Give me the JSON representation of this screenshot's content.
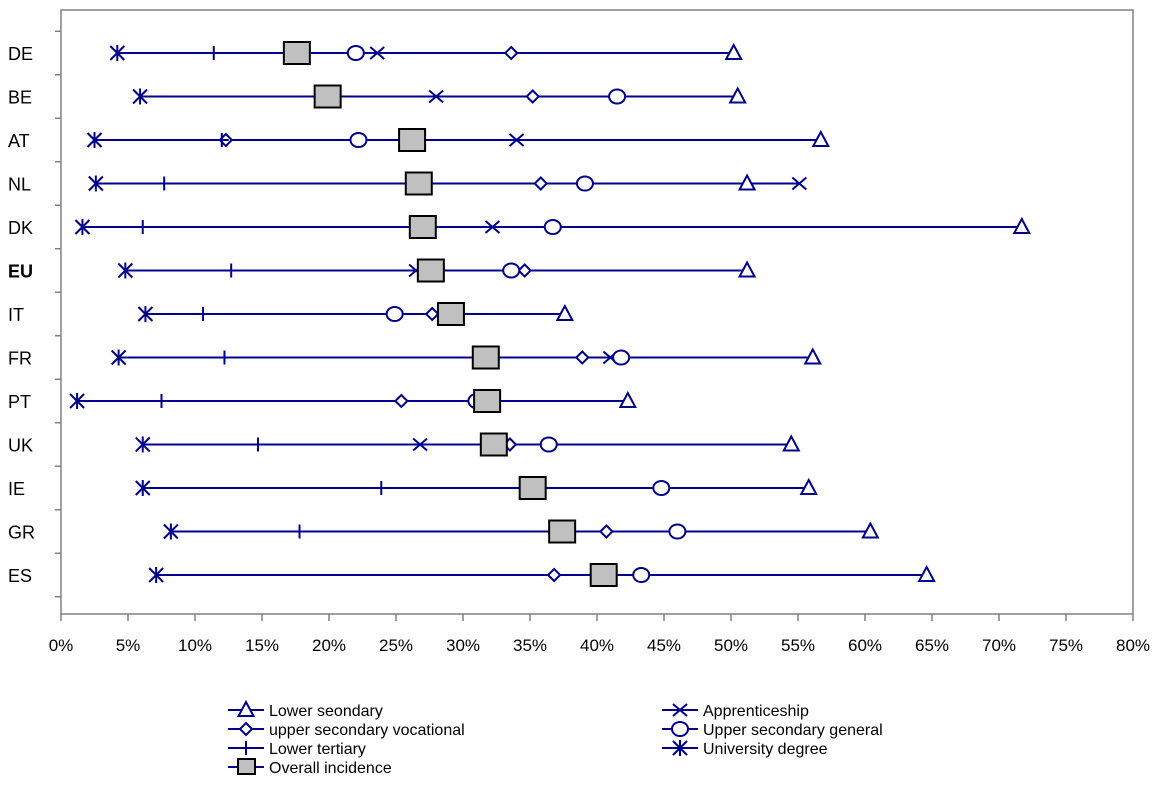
{
  "chart_data": {
    "type": "scatter",
    "title": "",
    "xlabel": "",
    "ylabel": "",
    "xlim": [
      0,
      0.8
    ],
    "x_ticks": [
      0,
      0.05,
      0.1,
      0.15,
      0.2,
      0.25,
      0.3,
      0.35,
      0.4,
      0.45,
      0.5,
      0.55,
      0.6,
      0.65,
      0.7,
      0.75,
      0.8
    ],
    "x_tick_labels": [
      "0%",
      "5%",
      "10%",
      "15%",
      "20%",
      "25%",
      "30%",
      "35%",
      "40%",
      "45%",
      "50%",
      "55%",
      "60%",
      "65%",
      "70%",
      "75%",
      "80%"
    ],
    "grid": false,
    "legend_position": "bottom",
    "bold_categories": [
      "EU"
    ],
    "categories": [
      "DE",
      "BE",
      "AT",
      "NL",
      "DK",
      "EU",
      "IT",
      "FR",
      "PT",
      "UK",
      "IE",
      "GR",
      "ES"
    ],
    "series": [
      {
        "name": "Lower seondary",
        "marker": "triangle",
        "color": "#00008B",
        "values": [
          0.502,
          0.505,
          0.567,
          0.512,
          0.717,
          0.512,
          0.376,
          0.561,
          0.423,
          0.545,
          0.558,
          0.604,
          0.646
        ]
      },
      {
        "name": "Apprenticeship",
        "marker": "x",
        "color": "#00008B",
        "values": [
          0.236,
          0.28,
          0.34,
          0.551,
          0.322,
          0.265,
          null,
          0.41,
          null,
          0.268,
          null,
          null,
          null
        ]
      },
      {
        "name": "upper secondary vocational",
        "marker": "diamond",
        "color": "#00008B",
        "values": [
          0.336,
          0.352,
          0.123,
          0.358,
          null,
          0.346,
          0.277,
          0.389,
          0.254,
          0.335,
          null,
          0.407,
          0.368
        ]
      },
      {
        "name": "Upper secondary general",
        "marker": "circle",
        "color": "#00008B",
        "values": [
          0.22,
          0.415,
          0.222,
          0.391,
          0.367,
          0.336,
          0.249,
          0.418,
          0.31,
          0.364,
          0.448,
          0.46,
          0.433
        ]
      },
      {
        "name": "Lower tertiary",
        "marker": "plus",
        "color": "#00008B",
        "values": [
          0.114,
          null,
          0.12,
          0.077,
          0.061,
          0.127,
          0.106,
          0.122,
          0.075,
          0.147,
          0.239,
          0.178,
          null
        ]
      },
      {
        "name": "University degree",
        "marker": "asterisk",
        "color": "#00008B",
        "values": [
          0.042,
          0.059,
          0.025,
          0.026,
          0.016,
          0.048,
          0.063,
          0.043,
          0.012,
          0.061,
          0.061,
          0.082,
          0.071
        ]
      },
      {
        "name": "Overall incidence",
        "marker": "square",
        "color": "#00008B",
        "fill": "#C0C0C0",
        "values": [
          0.176,
          0.199,
          0.262,
          0.267,
          0.27,
          0.276,
          0.291,
          0.317,
          0.318,
          0.323,
          0.352,
          0.374,
          0.405
        ]
      }
    ]
  },
  "colors": {
    "series_line": "#00008B",
    "square_fill": "#C0C0C0",
    "axis": "#808080",
    "text": "#000000"
  }
}
